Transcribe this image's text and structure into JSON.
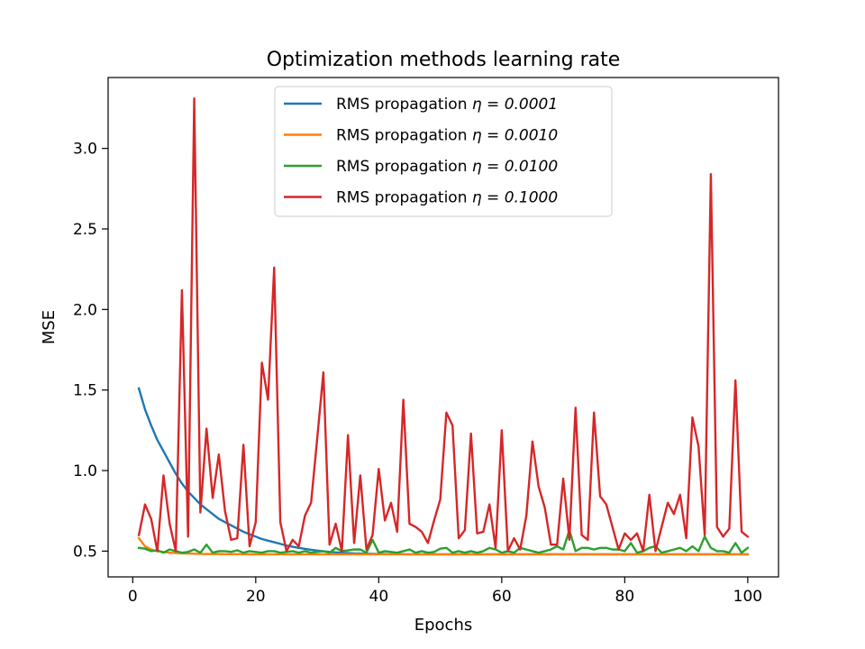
{
  "chart_data": {
    "type": "line",
    "title": "Optimization methods learning rate",
    "xlabel": "Epochs",
    "ylabel": "MSE",
    "xlim": [
      -4,
      105
    ],
    "ylim": [
      0.34,
      3.44
    ],
    "xticks": [
      0,
      20,
      40,
      60,
      80,
      100
    ],
    "yticks": [
      0.5,
      1.0,
      1.5,
      2.0,
      2.5,
      3.0
    ],
    "xtick_labels": [
      "0",
      "20",
      "40",
      "60",
      "80",
      "100"
    ],
    "ytick_labels": [
      "0.5",
      "1.0",
      "1.5",
      "2.0",
      "2.5",
      "3.0"
    ],
    "grid": false,
    "legend_position": "top-center",
    "x": [
      1,
      2,
      3,
      4,
      5,
      6,
      7,
      8,
      9,
      10,
      11,
      12,
      13,
      14,
      15,
      16,
      17,
      18,
      19,
      20,
      21,
      22,
      23,
      24,
      25,
      26,
      27,
      28,
      29,
      30,
      31,
      32,
      33,
      34,
      35,
      36,
      37,
      38,
      39,
      40,
      41,
      42,
      43,
      44,
      45,
      46,
      47,
      48,
      49,
      50,
      51,
      52,
      53,
      54,
      55,
      56,
      57,
      58,
      59,
      60,
      61,
      62,
      63,
      64,
      65,
      66,
      67,
      68,
      69,
      70,
      71,
      72,
      73,
      74,
      75,
      76,
      77,
      78,
      79,
      80,
      81,
      82,
      83,
      84,
      85,
      86,
      87,
      88,
      89,
      90,
      91,
      92,
      93,
      94,
      95,
      96,
      97,
      98,
      99,
      100
    ],
    "series": [
      {
        "name": "RMS propagation η = 0.0001",
        "legend_prefix": "RMS propagation ",
        "legend_math": "η = 0.0001",
        "color": "#1f77b4",
        "values": [
          1.51,
          1.38,
          1.28,
          1.19,
          1.12,
          1.05,
          0.98,
          0.92,
          0.87,
          0.83,
          0.79,
          0.76,
          0.73,
          0.7,
          0.68,
          0.66,
          0.64,
          0.62,
          0.605,
          0.59,
          0.575,
          0.565,
          0.555,
          0.545,
          0.535,
          0.527,
          0.52,
          0.514,
          0.508,
          0.503,
          0.499,
          0.495,
          0.492,
          0.49,
          0.488,
          0.486,
          0.485,
          0.484,
          0.483,
          0.482,
          0.482,
          0.481,
          0.481,
          0.481,
          0.48,
          0.48,
          0.48,
          0.48,
          0.48,
          0.48,
          0.48,
          0.48,
          0.48,
          0.48,
          0.48,
          0.48,
          0.48,
          0.48,
          0.48,
          0.48,
          0.48,
          0.48,
          0.48,
          0.48,
          0.48,
          0.48,
          0.48,
          0.48,
          0.48,
          0.48,
          0.48,
          0.48,
          0.48,
          0.48,
          0.48,
          0.48,
          0.48,
          0.48,
          0.48,
          0.48,
          0.48,
          0.48,
          0.48,
          0.48,
          0.48,
          0.48,
          0.48,
          0.48,
          0.48,
          0.48,
          0.48,
          0.48,
          0.48,
          0.48,
          0.48,
          0.48,
          0.48,
          0.48,
          0.48,
          0.48
        ]
      },
      {
        "name": "RMS propagation η = 0.0010",
        "legend_prefix": "RMS propagation ",
        "legend_math": "η = 0.0010",
        "color": "#ff7f0e",
        "values": [
          0.58,
          0.53,
          0.51,
          0.5,
          0.495,
          0.49,
          0.488,
          0.486,
          0.485,
          0.484,
          0.483,
          0.482,
          0.482,
          0.482,
          0.481,
          0.481,
          0.481,
          0.481,
          0.48,
          0.48,
          0.48,
          0.48,
          0.48,
          0.48,
          0.48,
          0.48,
          0.48,
          0.48,
          0.48,
          0.48,
          0.48,
          0.48,
          0.48,
          0.48,
          0.48,
          0.48,
          0.48,
          0.48,
          0.48,
          0.48,
          0.48,
          0.48,
          0.48,
          0.48,
          0.48,
          0.48,
          0.48,
          0.48,
          0.48,
          0.48,
          0.48,
          0.48,
          0.48,
          0.48,
          0.48,
          0.48,
          0.48,
          0.48,
          0.48,
          0.48,
          0.48,
          0.48,
          0.48,
          0.48,
          0.48,
          0.48,
          0.48,
          0.48,
          0.48,
          0.48,
          0.48,
          0.48,
          0.48,
          0.48,
          0.48,
          0.48,
          0.48,
          0.48,
          0.48,
          0.48,
          0.48,
          0.48,
          0.48,
          0.48,
          0.48,
          0.48,
          0.48,
          0.48,
          0.48,
          0.48,
          0.48,
          0.48,
          0.48,
          0.48,
          0.48,
          0.48,
          0.48,
          0.48,
          0.48,
          0.48
        ]
      },
      {
        "name": "RMS propagation η = 0.0100",
        "legend_prefix": "RMS propagation ",
        "legend_math": "η = 0.0100",
        "color": "#2ca02c",
        "values": [
          0.52,
          0.515,
          0.5,
          0.505,
          0.49,
          0.51,
          0.5,
          0.49,
          0.495,
          0.51,
          0.49,
          0.54,
          0.49,
          0.5,
          0.5,
          0.495,
          0.505,
          0.49,
          0.5,
          0.495,
          0.49,
          0.5,
          0.5,
          0.49,
          0.495,
          0.5,
          0.49,
          0.5,
          0.49,
          0.495,
          0.5,
          0.49,
          0.52,
          0.5,
          0.505,
          0.51,
          0.51,
          0.49,
          0.57,
          0.49,
          0.5,
          0.495,
          0.49,
          0.5,
          0.51,
          0.49,
          0.5,
          0.49,
          0.495,
          0.515,
          0.52,
          0.49,
          0.5,
          0.49,
          0.5,
          0.49,
          0.5,
          0.52,
          0.51,
          0.49,
          0.5,
          0.49,
          0.52,
          0.51,
          0.5,
          0.49,
          0.5,
          0.51,
          0.53,
          0.51,
          0.63,
          0.5,
          0.52,
          0.52,
          0.51,
          0.52,
          0.52,
          0.51,
          0.51,
          0.5,
          0.55,
          0.49,
          0.5,
          0.52,
          0.53,
          0.49,
          0.5,
          0.51,
          0.52,
          0.5,
          0.53,
          0.5,
          0.59,
          0.52,
          0.5,
          0.5,
          0.49,
          0.55,
          0.49,
          0.52
        ]
      },
      {
        "name": "RMS propagation η = 0.1000",
        "legend_prefix": "RMS propagation ",
        "legend_math": "η = 0.1000",
        "color": "#d62728",
        "values": [
          0.6,
          0.79,
          0.7,
          0.5,
          0.97,
          0.67,
          0.5,
          2.12,
          0.59,
          3.31,
          0.74,
          1.26,
          0.83,
          1.1,
          0.75,
          0.57,
          0.58,
          1.16,
          0.53,
          0.68,
          1.67,
          1.44,
          2.26,
          0.68,
          0.5,
          0.57,
          0.53,
          0.72,
          0.8,
          1.2,
          1.61,
          0.54,
          0.67,
          0.5,
          1.22,
          0.55,
          0.97,
          0.51,
          0.6,
          1.01,
          0.69,
          0.8,
          0.62,
          1.44,
          0.67,
          0.65,
          0.62,
          0.55,
          0.69,
          0.82,
          1.36,
          1.28,
          0.58,
          0.63,
          1.23,
          0.61,
          0.62,
          0.79,
          0.52,
          1.25,
          0.5,
          0.58,
          0.51,
          0.72,
          1.18,
          0.9,
          0.77,
          0.54,
          0.54,
          0.95,
          0.57,
          1.39,
          0.6,
          0.57,
          1.36,
          0.84,
          0.79,
          0.65,
          0.51,
          0.61,
          0.57,
          0.61,
          0.5,
          0.85,
          0.5,
          0.65,
          0.8,
          0.73,
          0.85,
          0.58,
          1.33,
          1.15,
          0.6,
          2.84,
          0.65,
          0.59,
          0.64,
          1.56,
          0.62,
          0.59
        ]
      }
    ]
  }
}
